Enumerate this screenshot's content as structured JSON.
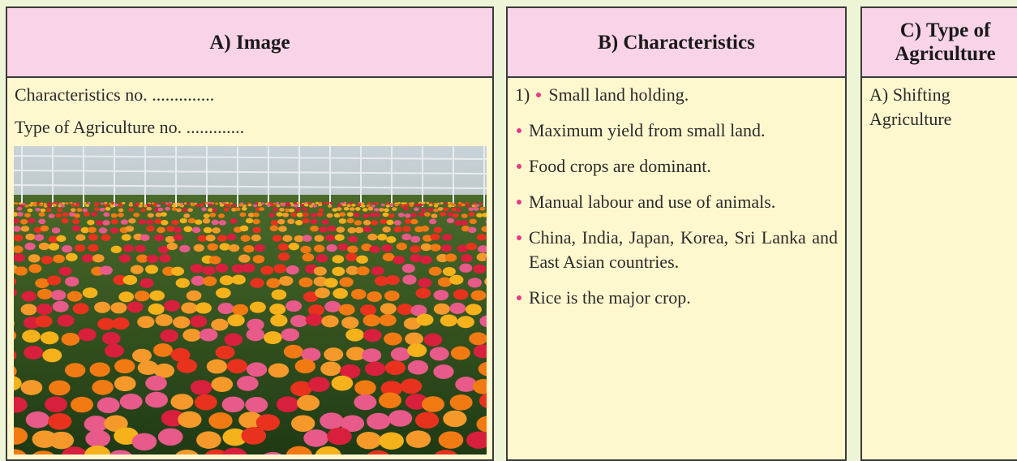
{
  "columns": [
    {
      "header": "A) Image",
      "lines": [
        "Characteristics no. ..............",
        "Type of Agriculture no. ............."
      ]
    },
    {
      "header": "B) Characteristics",
      "number": "1)",
      "bullets": [
        "Small land holding.",
        "Maximum yield from small land.",
        "Food crops are dominant.",
        "Manual labour and use of animals.",
        "China, India, Japan, Korea, Sri Lanka and East Asian countries.",
        "Rice is the major crop."
      ]
    },
    {
      "header": "C) Type of Agriculture",
      "text": "A) Shifting Agriculture"
    }
  ]
}
